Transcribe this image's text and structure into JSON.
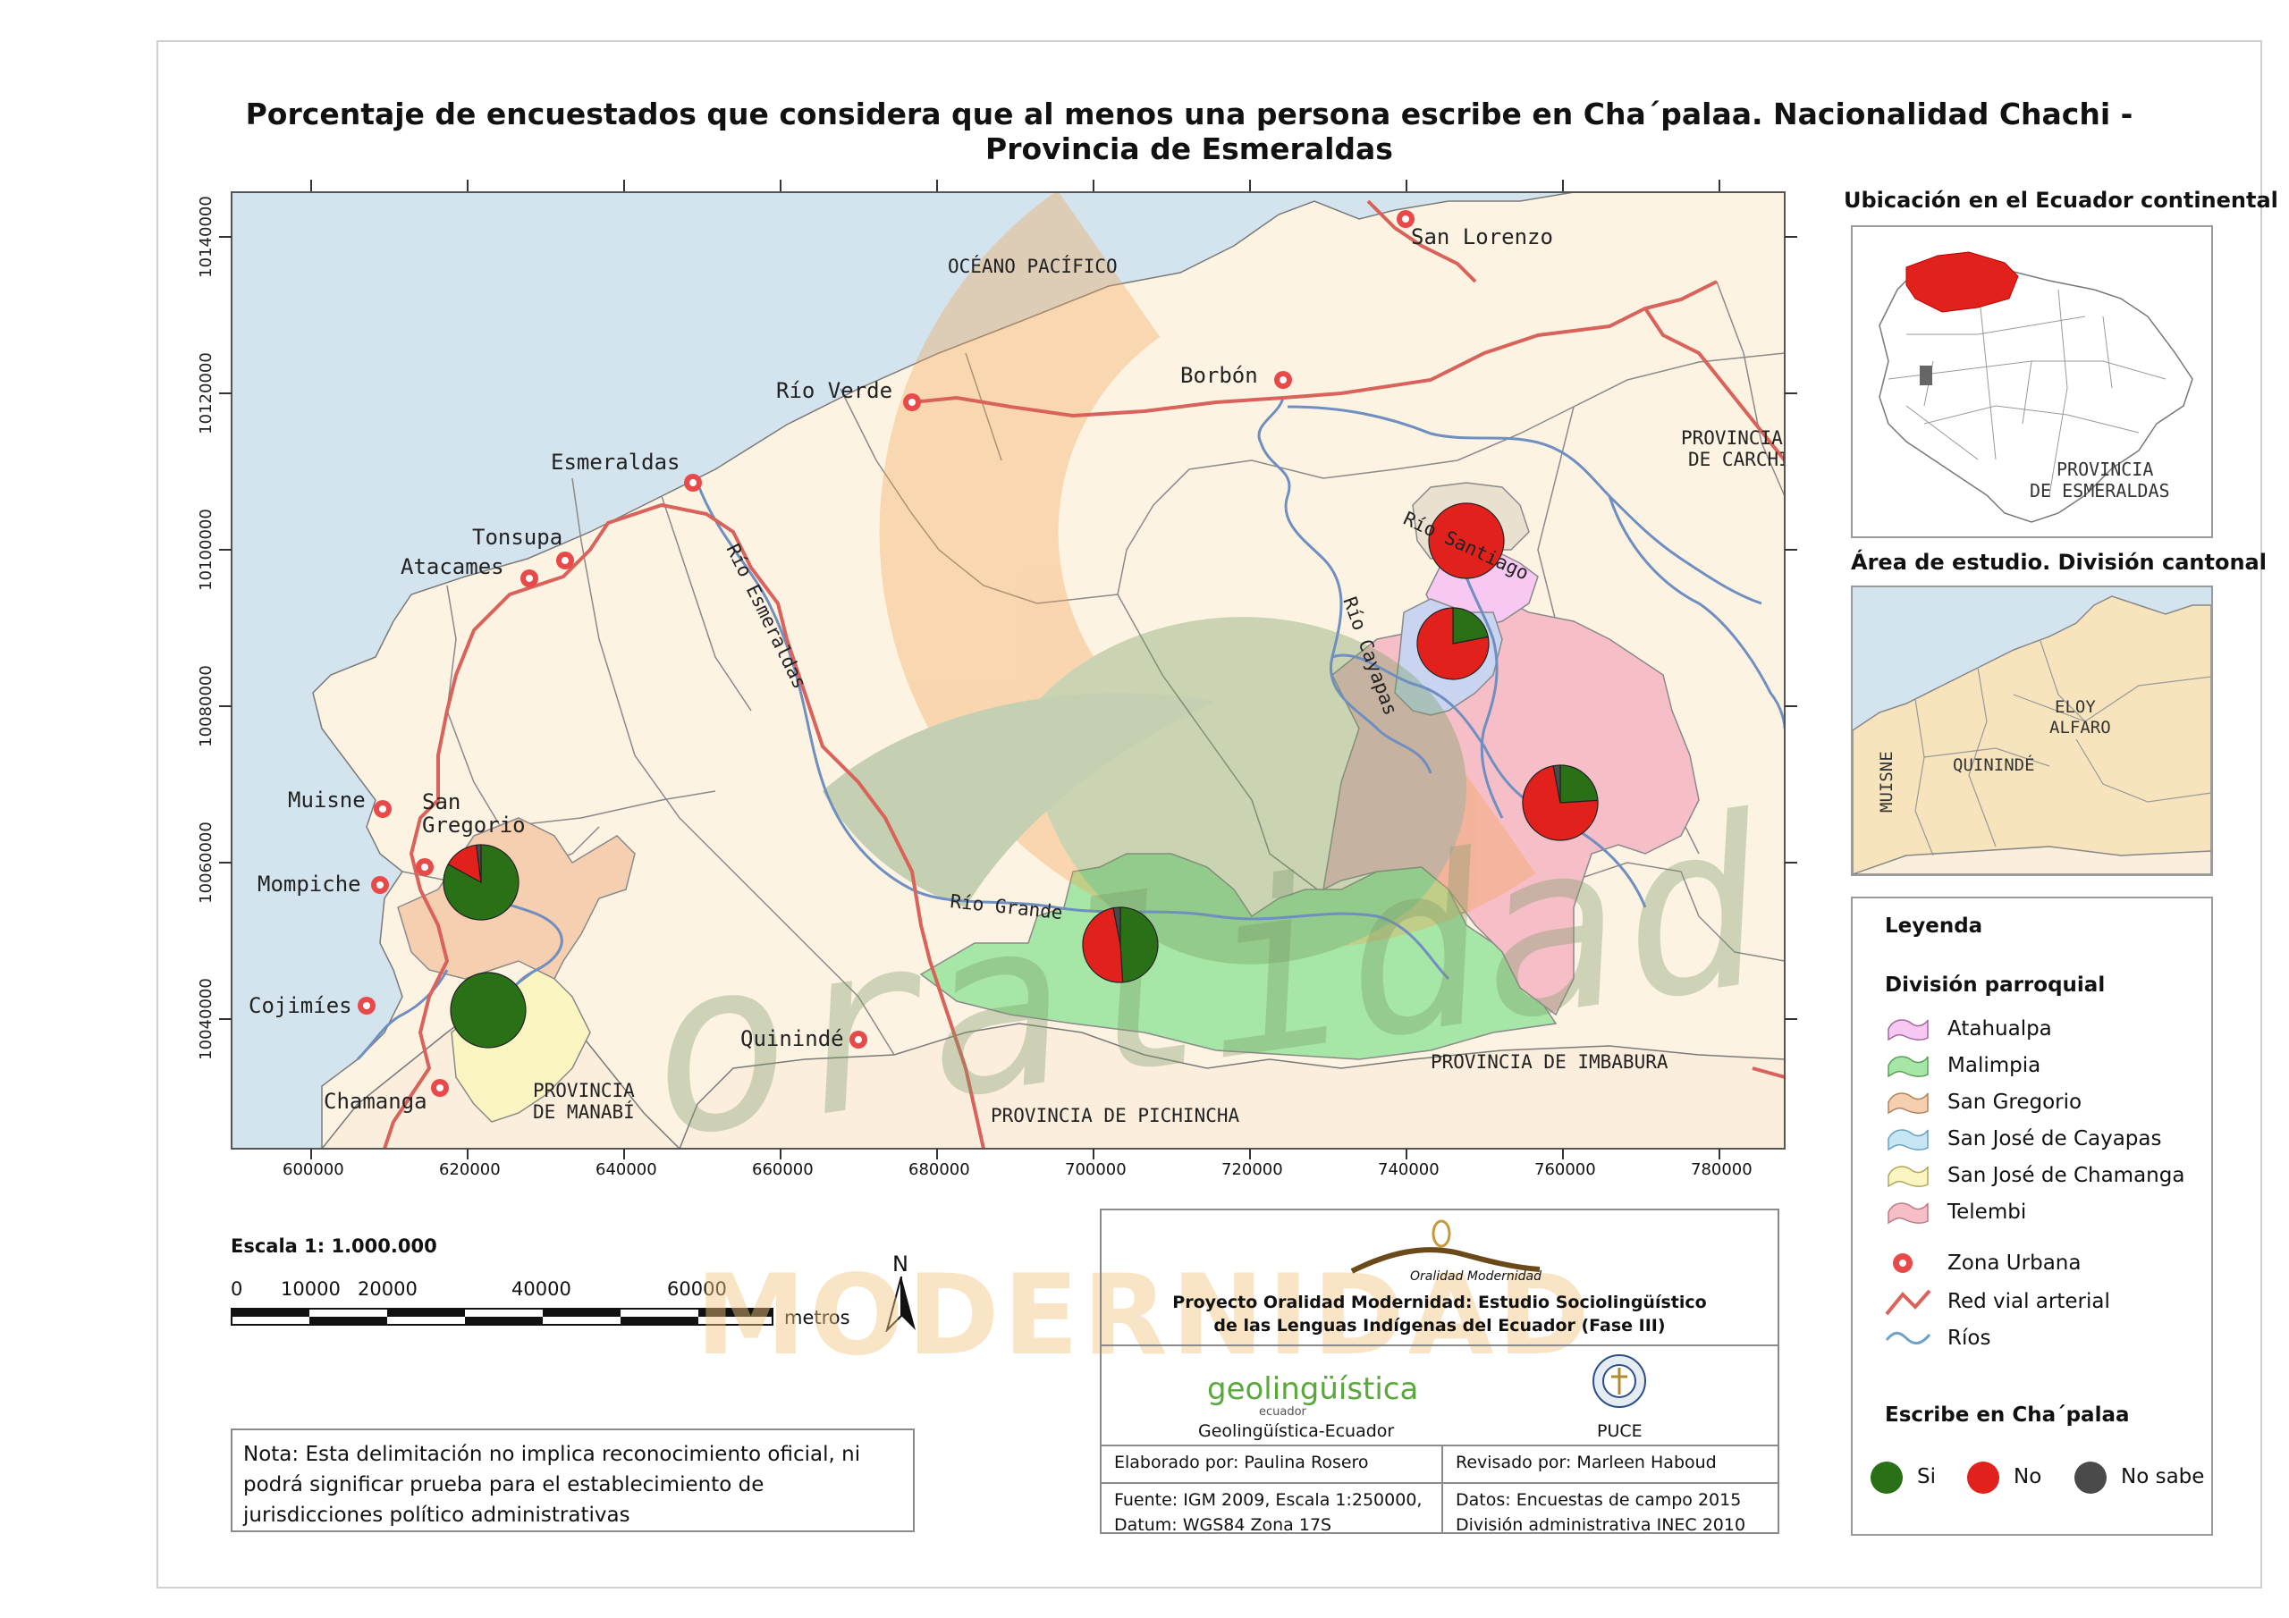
{
  "title": "Porcentaje de encuestados que considera que al menos una persona escribe en Cha´palaa. Nacionalidad Chachi - Provincia de Esmeraldas",
  "map": {
    "y_ticks": [
      "10140000",
      "10120000",
      "10100000",
      "10080000",
      "10060000",
      "10040000"
    ],
    "x_ticks": [
      "600000",
      "620000",
      "640000",
      "660000",
      "680000",
      "700000",
      "720000",
      "740000",
      "760000",
      "780000"
    ],
    "place_labels": {
      "oceano": "OCÉANO PACÍFICO",
      "san_lorenzo": "San Lorenzo",
      "rio_verde": "Río Verde",
      "borbon": "Borbón",
      "esmeraldas": "Esmeraldas",
      "tonsupa": "Tonsupa",
      "atacames": "Atacames",
      "muisne": "Muisne",
      "san_gregorio_1": "San",
      "san_gregorio_2": "Gregorio",
      "mompiche": "Mompiche",
      "cojimies": "Cojimíes",
      "chamanga": "Chamanga",
      "quininde": "Quinindé",
      "rio_esmeraldas": "Río Esmeraldas",
      "rio_santiago": "Río Santiago",
      "rio_cayapas": "Río Cayapas",
      "rio_grande": "Río Grande",
      "prov_carchi_1": "PROVINCIA",
      "prov_carchi_2": "DE CARCHI",
      "prov_imbabura": "PROVINCIA DE IMBABURA",
      "prov_pichincha": "PROVINCIA DE PICHINCHA",
      "prov_manabi_1": "PROVINCIA",
      "prov_manabi_2": "DE MANABÍ"
    },
    "watermark_1": "oralidad",
    "watermark_2": "MODERNIDAD",
    "colors": {
      "sea": "#d3e4ef",
      "land": "#fdf3e3",
      "road": "#d9625a",
      "river": "#6f8fc0",
      "si": "#2a7016",
      "no": "#e3211c",
      "no_sabe": "#4a4a4a",
      "atahualpa": "#f6c8f2",
      "malimpia": "#a6e6a6",
      "san_gregorio": "#f5cfb0",
      "san_jose_cayapas": "#c9d4f0",
      "san_jose_chamanga": "#fbf5c2",
      "telembi": "#f6bec6"
    },
    "pies": [
      {
        "parish": "Atahualpa",
        "si": 0,
        "no": 100,
        "no_sabe": 0
      },
      {
        "parish": "San José de Cayapas",
        "si": 22,
        "no": 78,
        "no_sabe": 0
      },
      {
        "parish": "Telembi",
        "si": 24,
        "no": 73,
        "no_sabe": 3
      },
      {
        "parish": "San Gregorio",
        "si": 83,
        "no": 15,
        "no_sabe": 2
      },
      {
        "parish": "Malimpia",
        "si": 49,
        "no": 48,
        "no_sabe": 3
      },
      {
        "parish": "San José de Chamanga",
        "si": 100,
        "no": 0,
        "no_sabe": 0
      }
    ]
  },
  "inset_ecuador": {
    "title": "Ubicación en el Ecuador continental",
    "label_1": "PROVINCIA",
    "label_2": "DE ESMERALDAS"
  },
  "inset_study": {
    "title": "Área de estudio. División cantonal",
    "label_eloy_1": "ELOY",
    "label_eloy_2": "ALFARO",
    "label_quininde": "QUININDÉ",
    "label_muisne": "MUISNE"
  },
  "legend": {
    "title": "Leyenda",
    "parroquial_title": "División parroquial",
    "parishes": [
      "Atahualpa",
      "Malimpia",
      "San Gregorio",
      "San José de Cayapas",
      "San José de Chamanga",
      "Telembi"
    ],
    "zona_urbana": "Zona Urbana",
    "red_vial": "Red vial arterial",
    "rios": "Ríos",
    "escribe_title": "Escribe en Cha´palaa",
    "si": "Si",
    "no": "No",
    "no_sabe": "No sabe"
  },
  "scale": {
    "label": "Escala 1: 1.000.000",
    "ticks": [
      "0",
      "10000",
      "20000",
      "40000",
      "60000"
    ],
    "unit": "metros",
    "north": "N"
  },
  "note": "Nota: Esta delimitación no implica reconocimiento oficial, ni podrá significar prueba para el establecimiento de jurisdicciones político administrativas",
  "credits": {
    "logo_text": "Oralidad Modernidad",
    "project_1": "Proyecto Oralidad Modernidad: Estudio Sociolingüístico",
    "project_2": "de las Lenguas Indígenas del Ecuador  (Fase III)",
    "geo_logo": "geolingüística",
    "geo_sub": "ecuador",
    "geo_name": "Geolingüística-Ecuador",
    "puce": "PUCE",
    "elaborado": "Elaborado por: Paulina Rosero",
    "revisado": "Revisado por: Marleen Haboud",
    "fuente_1": "Fuente: IGM 2009, Escala 1:250000,",
    "fuente_2": "Datum: WGS84 Zona 17S",
    "datos_1": "Datos: Encuestas de campo 2015",
    "datos_2": "División administrativa INEC 2010"
  }
}
